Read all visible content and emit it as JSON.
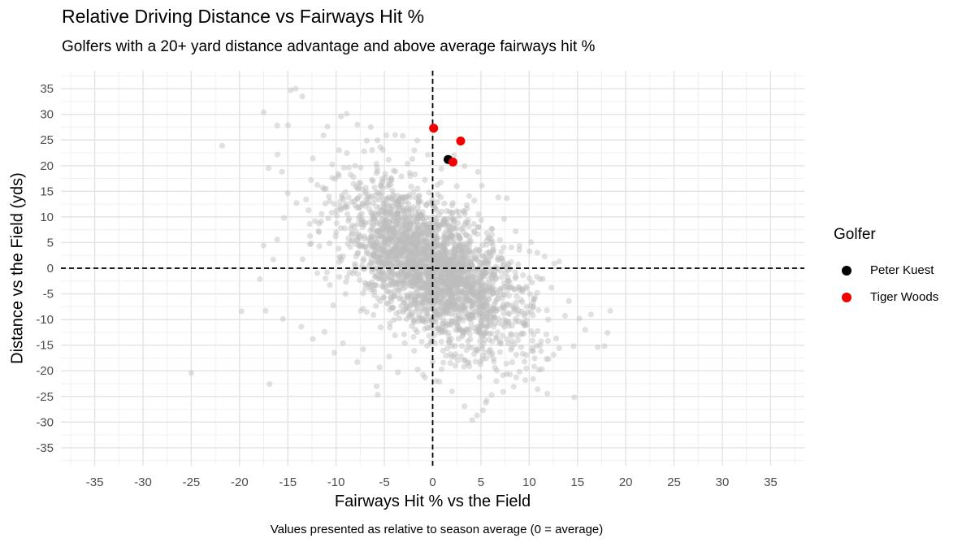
{
  "chart_data": {
    "type": "scatter",
    "title": "Relative Driving Distance vs Fairways Hit %",
    "subtitle": "Golfers with a 20+ yard distance advantage and above average fairways hit %",
    "xlabel": "Fairways Hit % vs the Field",
    "ylabel": "Distance vs the Field (yds)",
    "caption": "Values presented as relative to season average (0 = average)",
    "xlim": [
      -38.5,
      38.5
    ],
    "ylim": [
      -38.5,
      38.5
    ],
    "x_ticks": [
      -35,
      -30,
      -25,
      -20,
      -15,
      -10,
      -5,
      0,
      5,
      10,
      15,
      20,
      25,
      30,
      35
    ],
    "y_ticks": [
      -35,
      -30,
      -25,
      -20,
      -15,
      -10,
      -5,
      0,
      5,
      10,
      15,
      20,
      25,
      30,
      35
    ],
    "grid": true,
    "reference_lines": {
      "x": 0,
      "y": 0,
      "style": "dashed"
    },
    "background_cloud": {
      "color": "#bdbdbd",
      "opacity": 0.45,
      "points": [
        [
          -14.7,
          34.7
        ],
        [
          -14.2,
          35.0
        ],
        [
          -13.5,
          33.5
        ],
        [
          -17.5,
          30.4
        ],
        [
          -21.8,
          23.9
        ],
        [
          -16.1,
          27.8
        ],
        [
          -17.0,
          19.5
        ],
        [
          -15.6,
          18.8
        ],
        [
          -12.4,
          21.4
        ],
        [
          -11.3,
          25.9
        ],
        [
          -10.9,
          27.6
        ],
        [
          -9.5,
          29.6
        ],
        [
          -8.9,
          30.1
        ],
        [
          -7.8,
          28.0
        ],
        [
          -6.4,
          27.5
        ],
        [
          -4.8,
          25.9
        ],
        [
          -3.1,
          25.8
        ],
        [
          -1.6,
          24.9
        ],
        [
          -0.5,
          22.1
        ],
        [
          2.2,
          22.0
        ],
        [
          3.3,
          19.9
        ],
        [
          5.1,
          16.1
        ],
        [
          6.8,
          13.8
        ],
        [
          7.4,
          9.6
        ],
        [
          8.6,
          7.2
        ],
        [
          10.2,
          5.1
        ],
        [
          11.6,
          2.3
        ],
        [
          12.6,
          0.9
        ],
        [
          13.1,
          1.3
        ],
        [
          12.3,
          -3.8
        ],
        [
          14.1,
          -6.4
        ],
        [
          15.2,
          -9.8
        ],
        [
          18.4,
          -8.3
        ],
        [
          18.1,
          -12.6
        ],
        [
          17.8,
          -15.2
        ],
        [
          17.1,
          -15.4
        ],
        [
          14.6,
          -15.2
        ],
        [
          13.1,
          -15.6
        ],
        [
          11.8,
          -17.7
        ],
        [
          11.3,
          -19.7
        ],
        [
          10.4,
          -21.6
        ],
        [
          9.6,
          -21.8
        ],
        [
          8.4,
          -23.1
        ],
        [
          7.3,
          -24.1
        ],
        [
          6.1,
          -24.7
        ],
        [
          5.6,
          -25.8
        ],
        [
          5.5,
          -26.2
        ],
        [
          5.2,
          -27.7
        ],
        [
          4.6,
          -28.7
        ],
        [
          4.1,
          -29.6
        ],
        [
          3.3,
          -26.9
        ],
        [
          2.0,
          -24.0
        ],
        [
          0.7,
          -22.1
        ],
        [
          -0.8,
          -21.3
        ],
        [
          -3.6,
          -20.3
        ],
        [
          -5.5,
          -19.3
        ],
        [
          -7.8,
          -18.3
        ],
        [
          -10.2,
          -16.5
        ],
        [
          -12.4,
          -13.8
        ],
        [
          -13.6,
          -11.4
        ],
        [
          -15.5,
          -9.9
        ],
        [
          -17.3,
          -8.3
        ],
        [
          -19.8,
          -8.4
        ],
        [
          -17.9,
          -2.1
        ],
        [
          -16.5,
          1.7
        ],
        [
          -17.5,
          4.4
        ],
        [
          -16.1,
          5.6
        ],
        [
          -15.4,
          9.8
        ],
        [
          -14.1,
          12.7
        ],
        [
          -25.0,
          -20.4
        ],
        [
          -16.9,
          -22.6
        ],
        [
          -5.8,
          -23.0
        ],
        [
          -4.5,
          -17.2
        ],
        [
          1.1,
          -18.4
        ],
        [
          3.8,
          -19.1
        ],
        [
          6.6,
          -22.0
        ],
        [
          9.5,
          -18.2
        ],
        [
          12.8,
          -13.7
        ],
        [
          15.8,
          -12.0
        ],
        [
          16.4,
          -9.0
        ],
        [
          -12.6,
          17.2
        ],
        [
          -9.2,
          19.6
        ],
        [
          -7.1,
          22.8
        ],
        [
          -5.4,
          23.6
        ],
        [
          -2.1,
          21.3
        ],
        [
          0.9,
          19.4
        ],
        [
          2.5,
          16.0
        ],
        [
          4.3,
          13.2
        ],
        [
          -13.1,
          13.4
        ],
        [
          -11.5,
          10.6
        ],
        [
          -9.4,
          13.8
        ],
        [
          -8.2,
          17.8
        ],
        [
          -6.9,
          14.9
        ],
        [
          -4.3,
          17.6
        ],
        [
          -2.2,
          15.9
        ],
        [
          -0.8,
          17.2
        ],
        [
          -11.2,
          -12.4
        ],
        [
          -9.3,
          -14.6
        ],
        [
          -7.2,
          -15.8
        ],
        [
          -3.9,
          -13.1
        ]
      ]
    },
    "highlight_series": [
      {
        "name": "Peter Kuest",
        "color": "#000000",
        "points": [
          [
            1.6,
            21.2
          ]
        ]
      },
      {
        "name": "Tiger Woods",
        "color": "#f20000",
        "points": [
          [
            0.1,
            27.3
          ],
          [
            2.9,
            24.8
          ],
          [
            2.1,
            20.7
          ]
        ]
      }
    ],
    "legend": {
      "title": "Golfer",
      "position": "right"
    }
  }
}
